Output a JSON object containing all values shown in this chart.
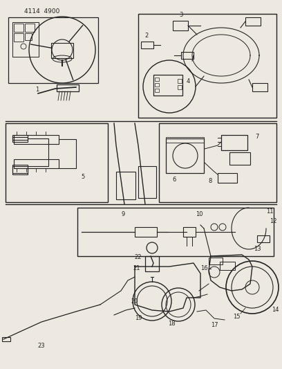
{
  "title": "4114  4900",
  "bg": "#ede8e0",
  "lc": "#222222",
  "fig_w": 4.08,
  "fig_h": 5.33,
  "dpi": 100
}
